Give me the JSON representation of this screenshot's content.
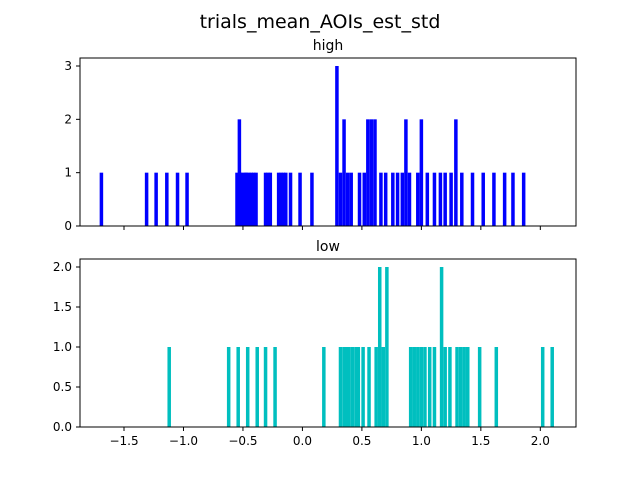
{
  "figure": {
    "suptitle": "trials_mean_AOIs_est_std"
  },
  "chart_data": [
    {
      "type": "bar",
      "title": "high",
      "xlabel": "",
      "ylabel": "",
      "color": "#0000ff",
      "xlim": [
        -1.87,
        2.3
      ],
      "ylim": [
        0,
        3.15
      ],
      "xticks": [
        -1.5,
        -1.0,
        -0.5,
        0.0,
        0.5,
        1.0,
        1.5,
        2.0
      ],
      "show_xtick_labels": false,
      "yticks": [
        0,
        1,
        2,
        3
      ],
      "ytick_labels": [
        "0",
        "1",
        "2",
        "3"
      ],
      "bin_width": 0.0295,
      "x": [
        -1.69,
        -1.31,
        -1.23,
        -1.14,
        -1.05,
        -0.97,
        -0.55,
        -0.53,
        -0.52,
        -0.5,
        -0.48,
        -0.47,
        -0.45,
        -0.43,
        -0.41,
        -0.39,
        -0.31,
        -0.29,
        -0.27,
        -0.2,
        -0.18,
        -0.16,
        -0.14,
        -0.1,
        -0.02,
        0.08,
        0.29,
        0.32,
        0.35,
        0.38,
        0.41,
        0.48,
        0.52,
        0.55,
        0.58,
        0.61,
        0.66,
        0.7,
        0.76,
        0.8,
        0.84,
        0.87,
        0.9,
        0.97,
        1.0,
        1.05,
        1.11,
        1.16,
        1.2,
        1.25,
        1.29,
        1.34,
        1.43,
        1.52,
        1.61,
        1.7,
        1.77,
        1.86
      ],
      "values": [
        1,
        1,
        1,
        1,
        1,
        1,
        1,
        2,
        1,
        1,
        1,
        1,
        1,
        1,
        1,
        1,
        1,
        1,
        1,
        1,
        1,
        1,
        1,
        1,
        1,
        1,
        3,
        1,
        2,
        1,
        1,
        1,
        1,
        2,
        2,
        2,
        1,
        1,
        1,
        1,
        1,
        2,
        1,
        1,
        2,
        1,
        1,
        1,
        1,
        1,
        2,
        1,
        1,
        1,
        1,
        1,
        1,
        1
      ]
    },
    {
      "type": "bar",
      "title": "low",
      "xlabel": "",
      "ylabel": "",
      "color": "#00bfbf",
      "xlim": [
        -1.87,
        2.3
      ],
      "ylim": [
        0,
        2.1
      ],
      "xticks": [
        -1.5,
        -1.0,
        -0.5,
        0.0,
        0.5,
        1.0,
        1.5,
        2.0
      ],
      "xtick_labels": [
        "−1.5",
        "−1.0",
        "−0.5",
        "0.0",
        "0.5",
        "1.0",
        "1.5",
        "2.0"
      ],
      "show_xtick_labels": true,
      "yticks": [
        0.0,
        0.5,
        1.0,
        1.5,
        2.0
      ],
      "ytick_labels": [
        "0.0",
        "0.5",
        "1.0",
        "1.5",
        "2.0"
      ],
      "bin_width": 0.0295,
      "x": [
        -1.12,
        -0.62,
        -0.54,
        -0.46,
        -0.38,
        -0.31,
        -0.23,
        0.18,
        0.32,
        0.35,
        0.37,
        0.39,
        0.42,
        0.45,
        0.47,
        0.51,
        0.56,
        0.62,
        0.65,
        0.68,
        0.71,
        0.91,
        0.94,
        0.97,
        1.0,
        1.03,
        1.07,
        1.11,
        1.17,
        1.2,
        1.24,
        1.3,
        1.33,
        1.36,
        1.39,
        1.49,
        1.63,
        2.02,
        2.1
      ],
      "values": [
        1,
        1,
        1,
        1,
        1,
        1,
        1,
        1,
        1,
        1,
        1,
        1,
        1,
        1,
        1,
        1,
        1,
        1,
        2,
        1,
        2,
        1,
        1,
        1,
        1,
        1,
        1,
        1,
        2,
        1,
        1,
        1,
        1,
        1,
        1,
        1,
        1,
        1,
        1
      ]
    }
  ]
}
